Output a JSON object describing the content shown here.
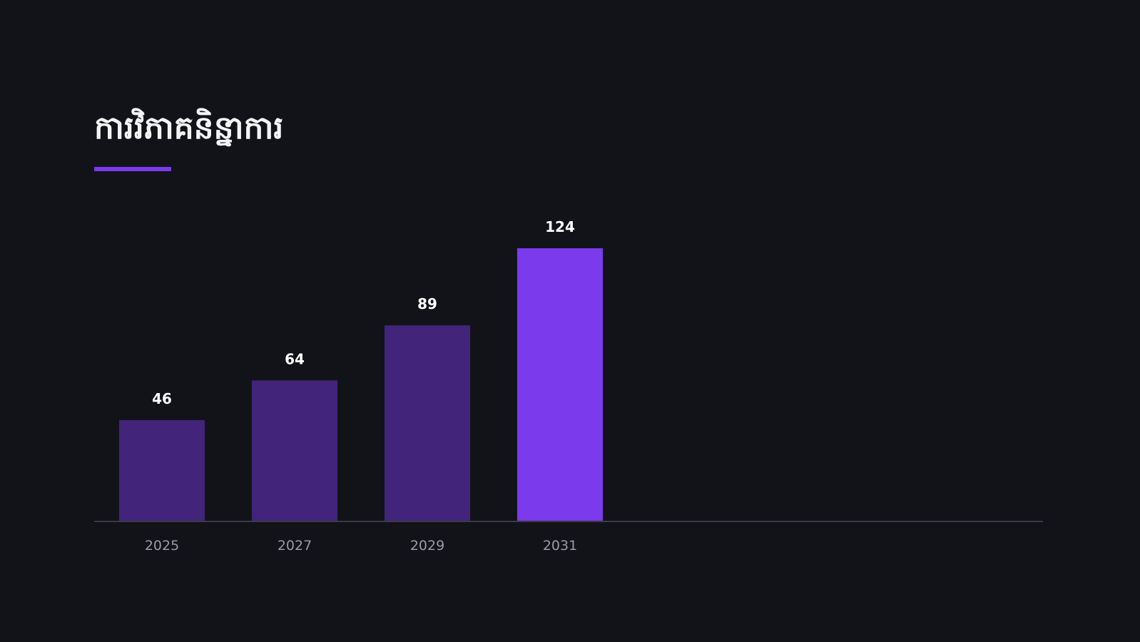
{
  "title": "ការវិភាគនិន្នាការ",
  "colors": {
    "background": "#121319",
    "accent": "#7c3aed",
    "bar_muted": "#42247a",
    "axis": "#3a3b44",
    "value_text": "#ffffff",
    "tick_text": "#9a9ba3"
  },
  "chart_data": {
    "type": "bar",
    "title": "ការវិភាគនិន្នាការ",
    "xlabel": "",
    "ylabel": "",
    "categories": [
      "2025",
      "2027",
      "2029",
      "2031"
    ],
    "values": [
      46,
      64,
      89,
      124
    ],
    "highlight_index": 3,
    "ylim": [
      0,
      124
    ],
    "grid": false,
    "legend": "none"
  }
}
